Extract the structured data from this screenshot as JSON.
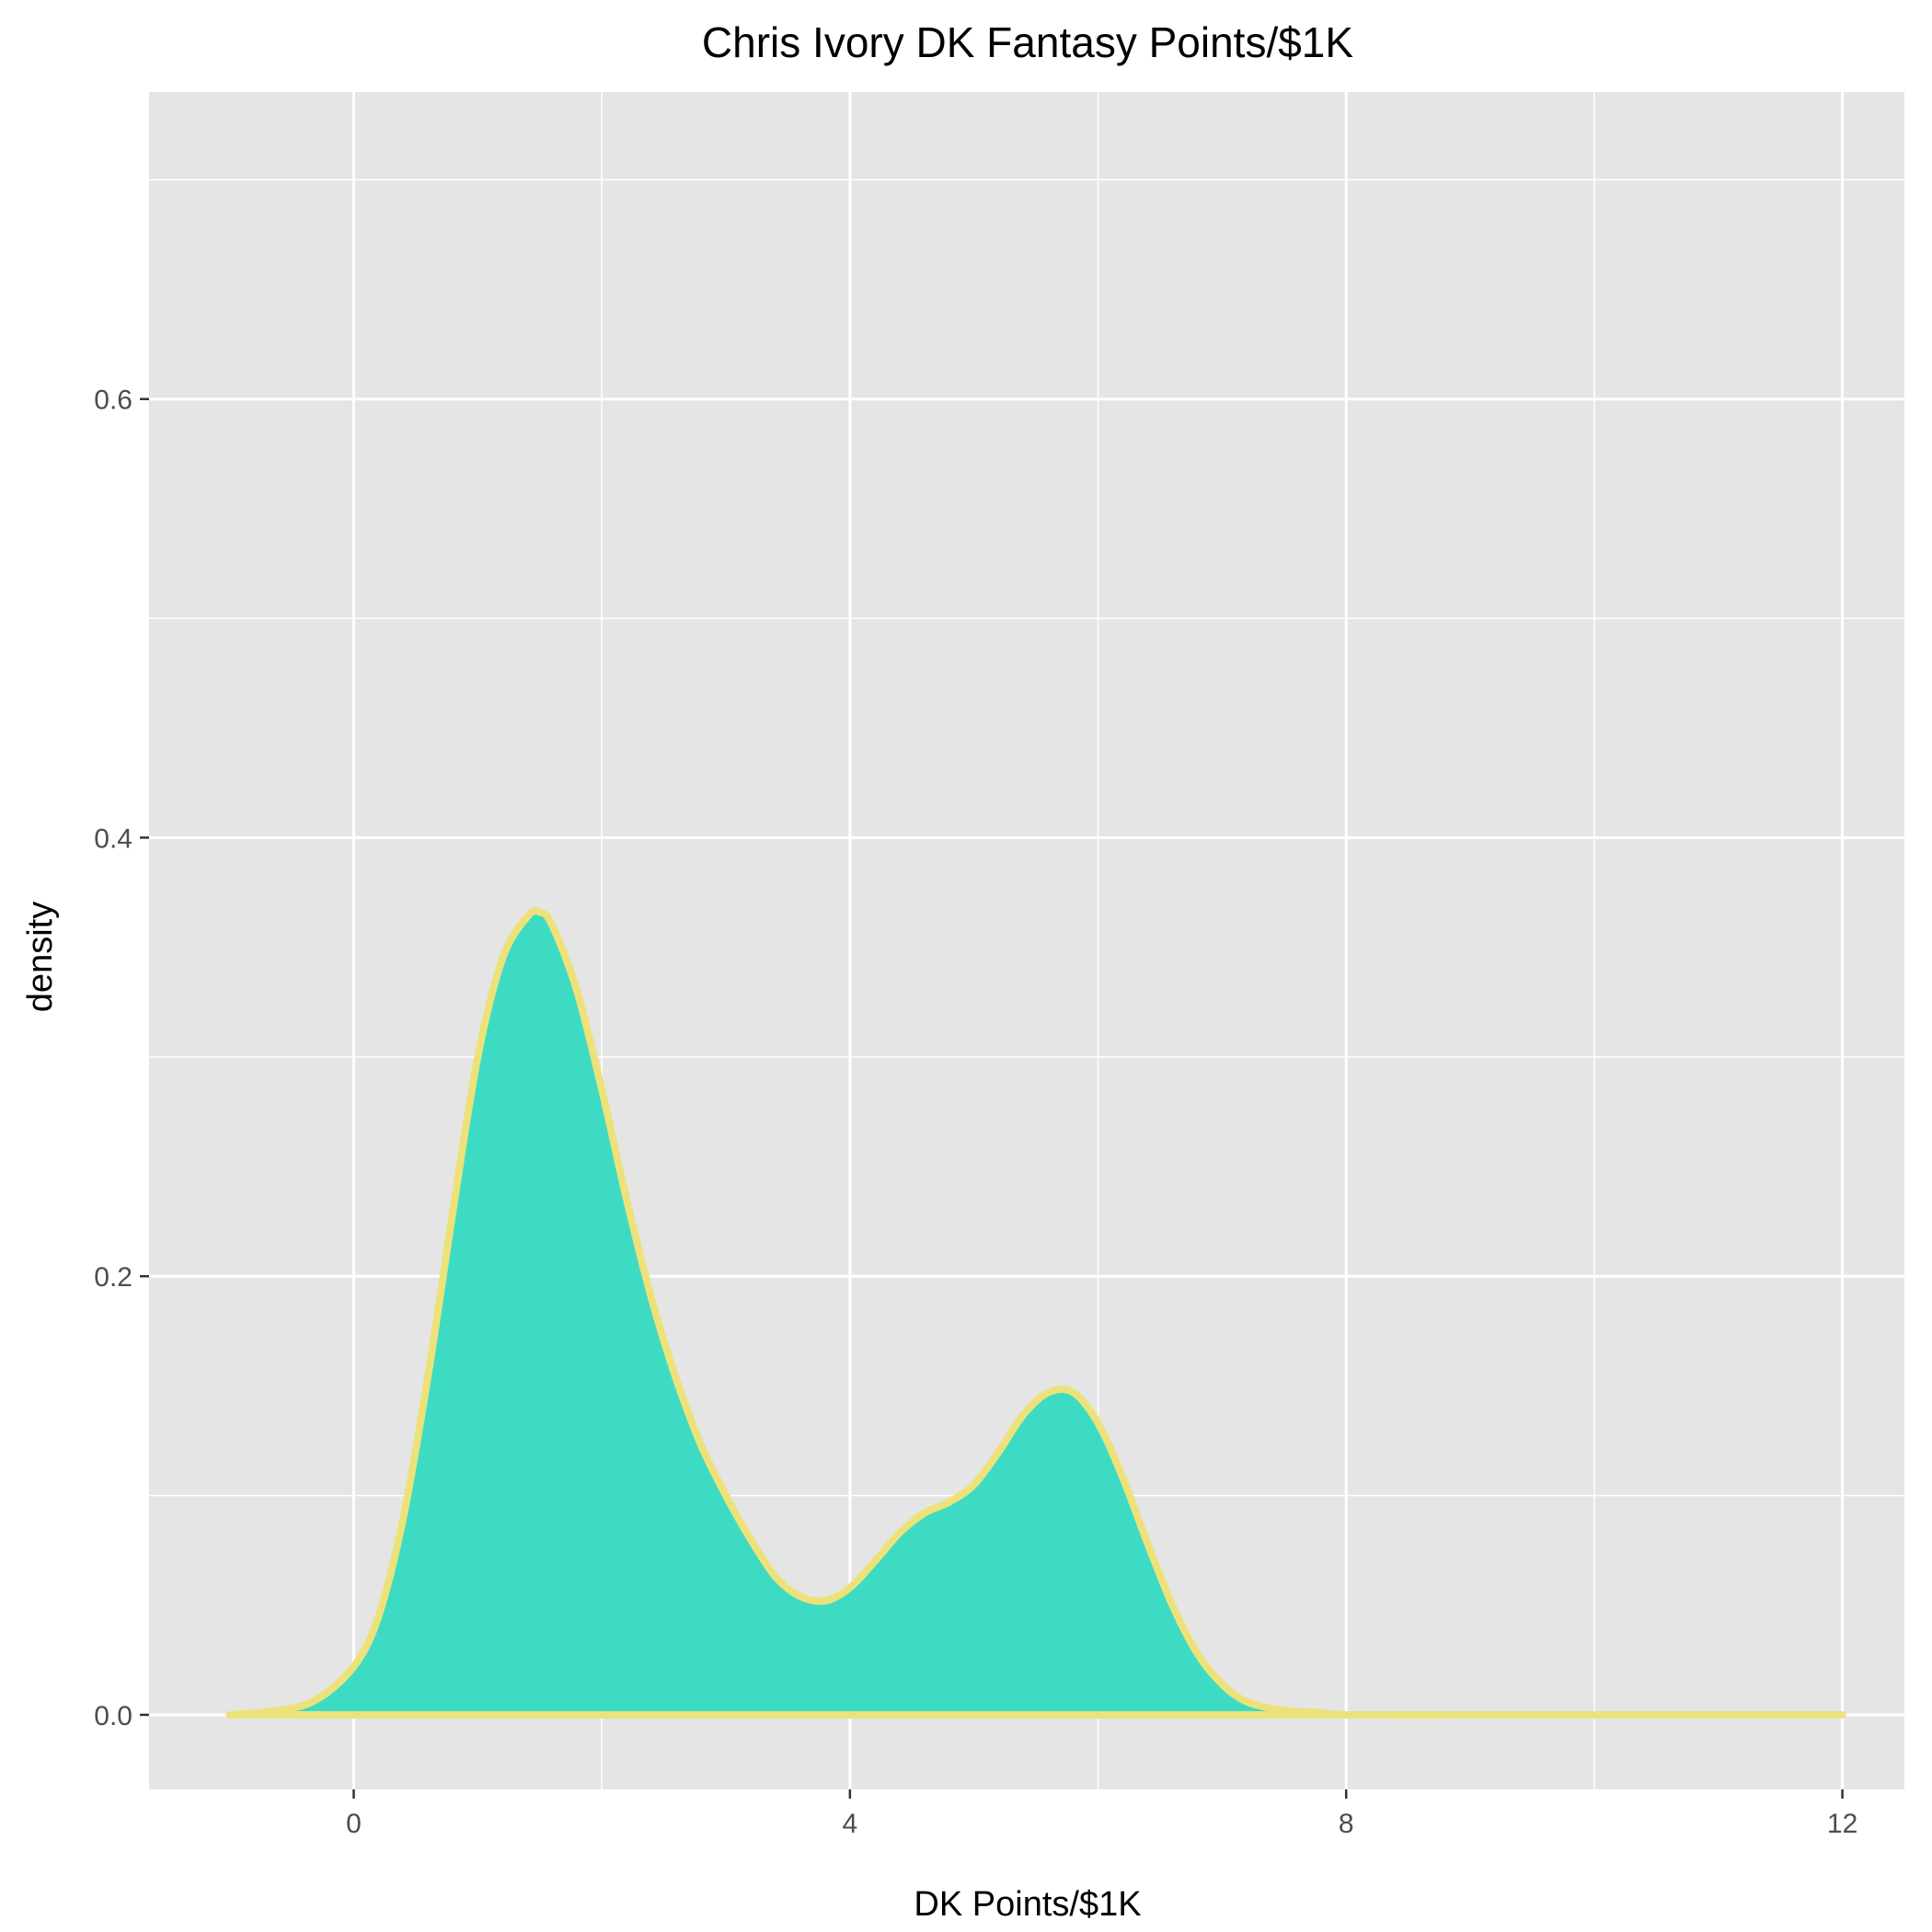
{
  "chart_data": {
    "type": "area",
    "title": "Chris Ivory DK Fantasy Points/$1K",
    "xlabel": "DK Points/$1K",
    "ylabel": "density",
    "xlim": [
      -1.65,
      12.5
    ],
    "ylim": [
      -0.034,
      0.74
    ],
    "x_ticks": [
      0,
      4,
      8,
      12
    ],
    "x_tick_labels": [
      "0",
      "4",
      "8",
      "12"
    ],
    "x_minor_ticks": [
      2,
      6,
      10
    ],
    "y_ticks": [
      0.0,
      0.2,
      0.4,
      0.6
    ],
    "y_tick_labels": [
      "0.0",
      "0.2",
      "0.4",
      "0.6"
    ],
    "y_minor_ticks": [
      0.1,
      0.3,
      0.5,
      0.7
    ],
    "grid": true,
    "legend": "none",
    "colors": {
      "fill": "#3ddbc4",
      "line": "#ede27a",
      "panel": "#e5e5e5",
      "grid": "#ffffff"
    },
    "series": [
      {
        "x": [
          -1.0,
          -0.6,
          -0.3,
          0.0,
          0.2,
          0.4,
          0.6,
          0.8,
          1.0,
          1.2,
          1.4,
          1.5,
          1.6,
          1.8,
          2.0,
          2.2,
          2.4,
          2.6,
          2.8,
          3.0,
          3.2,
          3.4,
          3.6,
          3.8,
          4.0,
          4.2,
          4.4,
          4.6,
          4.8,
          5.0,
          5.2,
          5.4,
          5.6,
          5.8,
          6.0,
          6.2,
          6.4,
          6.6,
          6.8,
          7.0,
          7.2,
          7.5,
          7.8,
          8.0,
          9.0,
          10.0,
          11.0,
          12.0
        ],
        "y": [
          0.0,
          0.002,
          0.007,
          0.022,
          0.045,
          0.09,
          0.155,
          0.23,
          0.3,
          0.345,
          0.364,
          0.366,
          0.36,
          0.33,
          0.285,
          0.235,
          0.19,
          0.153,
          0.123,
          0.1,
          0.08,
          0.063,
          0.054,
          0.052,
          0.058,
          0.07,
          0.083,
          0.092,
          0.097,
          0.105,
          0.12,
          0.137,
          0.147,
          0.147,
          0.133,
          0.108,
          0.078,
          0.05,
          0.028,
          0.014,
          0.006,
          0.002,
          0.001,
          0.0,
          0.0,
          0.0,
          0.0,
          0.0
        ]
      }
    ]
  }
}
